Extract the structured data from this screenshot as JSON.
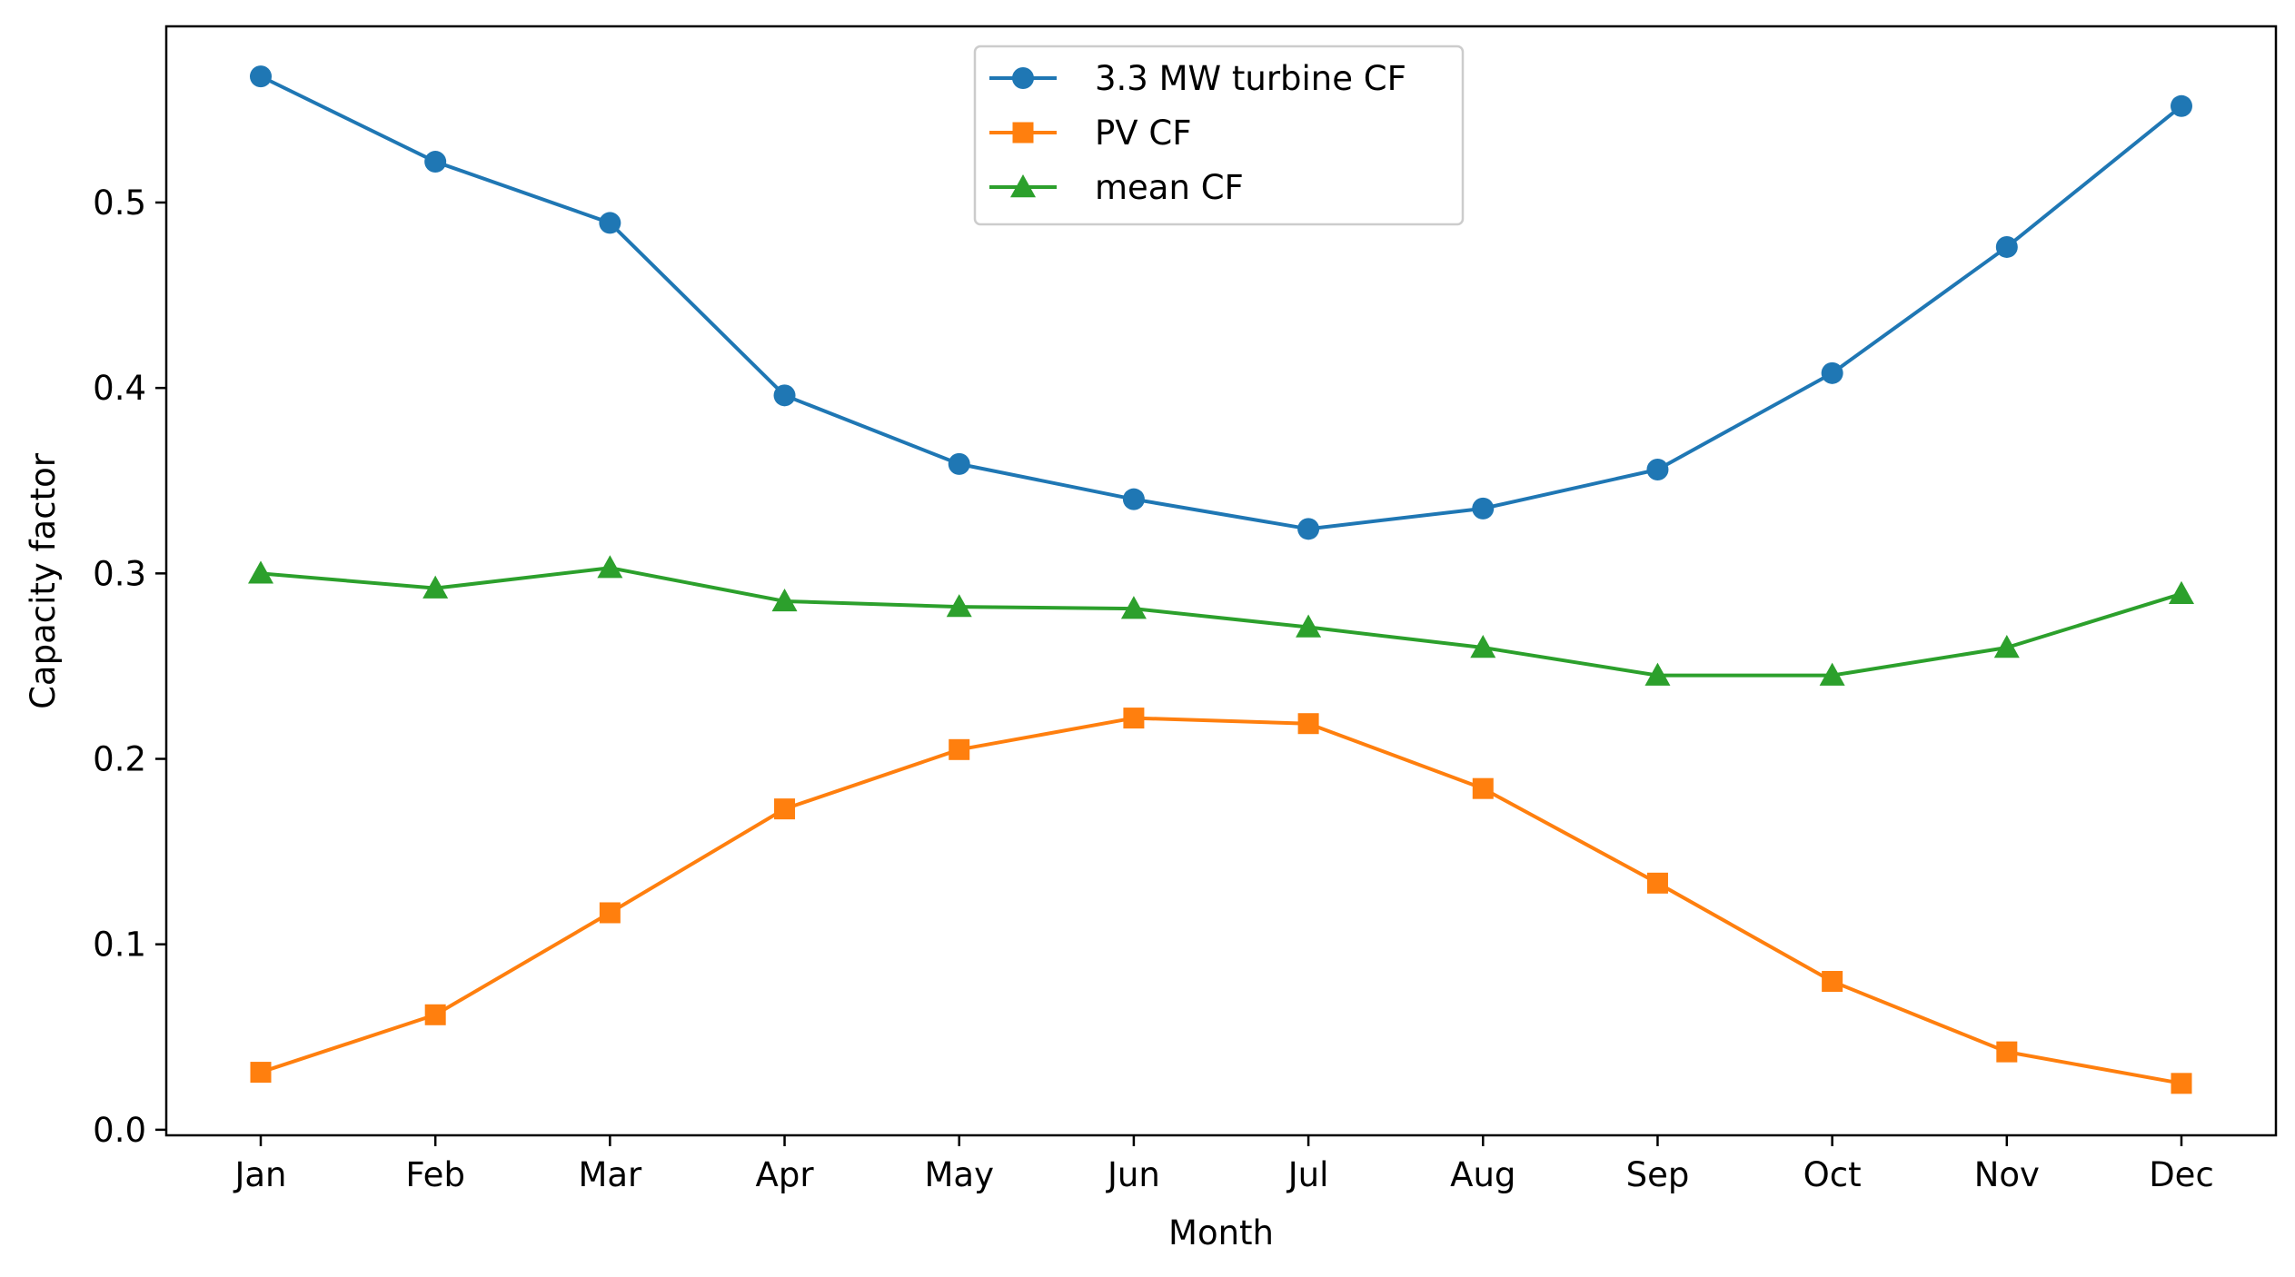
{
  "chart_data": {
    "type": "line",
    "title": "",
    "xlabel": "Month",
    "ylabel": "Capacity factor",
    "categories": [
      "Jan",
      "Feb",
      "Mar",
      "Apr",
      "May",
      "Jun",
      "Jul",
      "Aug",
      "Sep",
      "Oct",
      "Nov",
      "Dec"
    ],
    "ylim": [
      -0.003,
      0.595
    ],
    "yticks": [
      0.0,
      0.1,
      0.2,
      0.3,
      0.4,
      0.5
    ],
    "ytick_labels": [
      "0.0",
      "0.1",
      "0.2",
      "0.3",
      "0.4",
      "0.5"
    ],
    "grid": false,
    "legend_position": "top-center",
    "series": [
      {
        "name": "3.3 MW turbine CF",
        "color": "#1f77b4",
        "marker": "circle",
        "values": [
          0.568,
          0.522,
          0.489,
          0.396,
          0.359,
          0.34,
          0.324,
          0.335,
          0.356,
          0.408,
          0.476,
          0.552
        ]
      },
      {
        "name": "PV CF",
        "color": "#ff7f0e",
        "marker": "square",
        "values": [
          0.031,
          0.062,
          0.117,
          0.173,
          0.205,
          0.222,
          0.219,
          0.184,
          0.133,
          0.08,
          0.042,
          0.025
        ]
      },
      {
        "name": "mean CF",
        "color": "#2ca02c",
        "marker": "triangle",
        "values": [
          0.3,
          0.292,
          0.303,
          0.285,
          0.282,
          0.281,
          0.271,
          0.26,
          0.245,
          0.245,
          0.26,
          0.289
        ]
      }
    ]
  }
}
